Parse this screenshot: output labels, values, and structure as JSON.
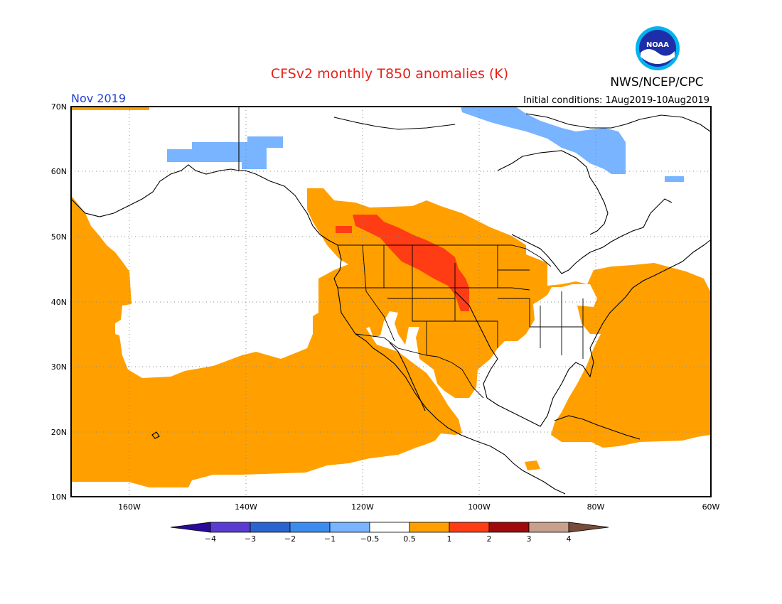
{
  "header": {
    "title": "CFSv2 monthly T850 anomalies (K)",
    "agency": "NWS/NCEP/CPC",
    "logo_text": "NOAA",
    "period": "Nov 2019",
    "initial_conditions": "Initial conditions: 1Aug2019-10Aug2019"
  },
  "colors": {
    "title": "#e8201a",
    "period": "#1f3fd6",
    "warm_05_1": "#ffa000",
    "warm_1_2": "#ff3c14",
    "cool_05_1": "#78b4ff",
    "frame": "#000000"
  },
  "map": {
    "projection": "equirectangular",
    "lon_range": [
      -172,
      -60
    ],
    "lat_range": [
      10,
      70
    ],
    "lat_labels": [
      "70N",
      "60N",
      "50N",
      "40N",
      "30N",
      "20N",
      "10N"
    ],
    "lon_labels": [
      "160W",
      "140W",
      "120W",
      "100W",
      "80W",
      "60W"
    ],
    "grid": "dotted"
  },
  "colorbar": {
    "colors": [
      "#2a0a96",
      "#5a3cd2",
      "#2b64d2",
      "#3c8cf0",
      "#78b4ff",
      "#ffffff",
      "#ffa000",
      "#ff3c14",
      "#a00a0a",
      "#c8a08c",
      "#7a4b3a"
    ],
    "labels": [
      "−4",
      "−3",
      "−2",
      "−1",
      "−0.5",
      "0.5",
      "1",
      "2",
      "3",
      "4"
    ]
  },
  "legend_values": [
    -4,
    -3,
    -2,
    -1,
    -0.5,
    0.5,
    1,
    2,
    3,
    4
  ]
}
